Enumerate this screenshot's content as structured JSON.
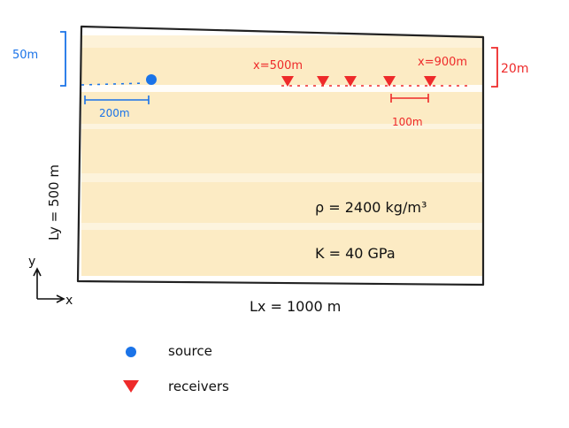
{
  "annotations": {
    "depth_label": "50m",
    "offset_label": "200m",
    "receivers_start_label": "x=500m",
    "receivers_end_label": "x=900m",
    "receiver_depth_label": "20m",
    "spacing_label": "100m",
    "height_label": "Ly = 500 m",
    "width_label": "Lx = 1000 m",
    "density_label": "ρ = 2400 kg/m³",
    "bulk_modulus_label": "K = 40 GPa",
    "y_axis_label": "y",
    "x_axis_label": "x"
  },
  "legend": {
    "source_label": "source",
    "receivers_label": "receivers"
  },
  "colors": {
    "source": "#1a73e8",
    "receiver": "#ee2a2a",
    "medium_fill": "#fbe4b0",
    "outline": "#222222"
  }
}
